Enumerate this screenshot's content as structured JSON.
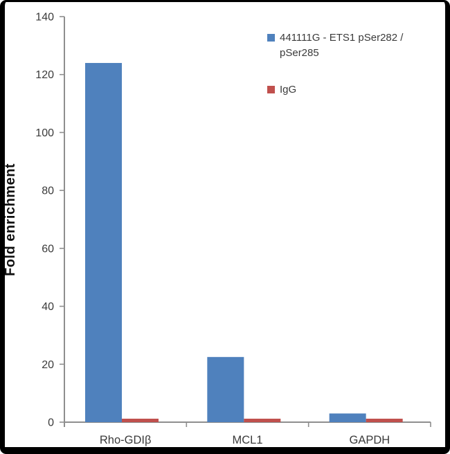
{
  "window": {
    "background": "#ffffff",
    "frame_color": "#000000"
  },
  "chart_data": {
    "type": "bar",
    "title": "",
    "xlabel": "",
    "ylabel": "Fold enrichment",
    "categories": [
      "Rho-GDIβ",
      "MCL1",
      "GAPDH"
    ],
    "series": [
      {
        "name": "441111G - ETS1 pSer282 / pSer285",
        "color": "#4f81bd",
        "values": [
          124,
          22.5,
          3
        ]
      },
      {
        "name": "IgG",
        "color": "#c0504d",
        "values": [
          1.2,
          1.2,
          1.2
        ]
      }
    ],
    "ylim": [
      0,
      140
    ],
    "ytick_step": 20,
    "yticks": [
      0,
      20,
      40,
      60,
      80,
      100,
      120,
      140
    ],
    "grid": false,
    "legend_position": "top-right",
    "axis_color": "#8e8e8e",
    "text_color": "#3a3a3a"
  }
}
